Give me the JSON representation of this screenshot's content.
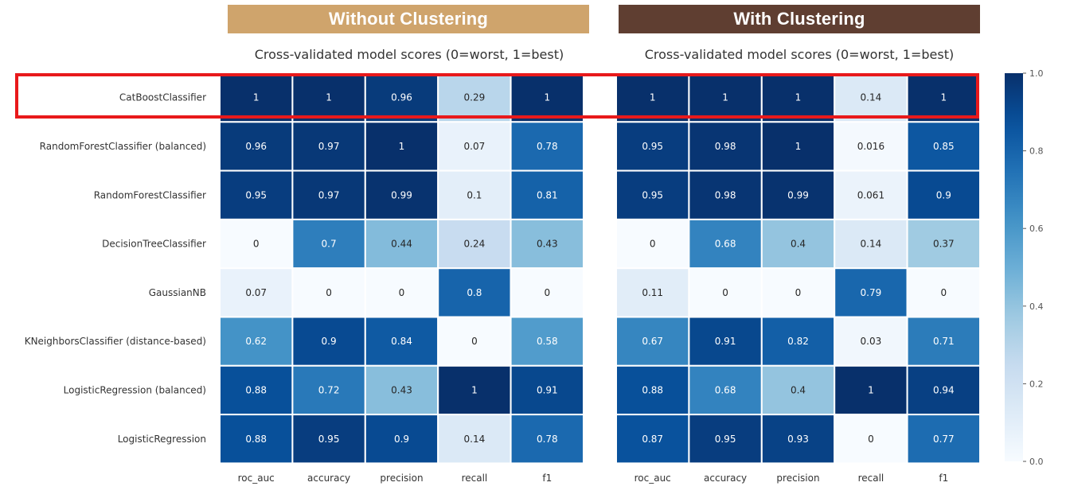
{
  "headers": {
    "left": "Without Clustering",
    "right": "With Clustering",
    "left_color": "#cfa46c",
    "right_color": "#5f3e31"
  },
  "highlight_color": "#e8191b",
  "chart_data": [
    {
      "type": "heatmap",
      "title": "Cross-validated model scores (0=worst, 1=best)",
      "rows": [
        "CatBoostClassifier",
        "RandomForestClassifier (balanced)",
        "RandomForestClassifier",
        "DecisionTreeClassifier",
        "GaussianNB",
        "KNeighborsClassifier (distance-based)",
        "LogisticRegression (balanced)",
        "LogisticRegression"
      ],
      "columns": [
        "roc_auc",
        "accuracy",
        "precision",
        "recall",
        "f1"
      ],
      "values": [
        [
          1,
          1,
          0.96,
          0.29,
          1
        ],
        [
          0.96,
          0.97,
          1,
          0.07,
          0.78
        ],
        [
          0.95,
          0.97,
          0.99,
          0.1,
          0.81
        ],
        [
          0,
          0.7,
          0.44,
          0.24,
          0.43
        ],
        [
          0.07,
          0,
          0,
          0.8,
          0
        ],
        [
          0.62,
          0.9,
          0.84,
          0,
          0.58
        ],
        [
          0.88,
          0.72,
          0.43,
          1,
          0.91
        ],
        [
          0.88,
          0.95,
          0.9,
          0.14,
          0.78
        ]
      ]
    },
    {
      "type": "heatmap",
      "title": "Cross-validated model scores (0=worst, 1=best)",
      "rows": [
        "CatBoostClassifier",
        "RandomForestClassifier (balanced)",
        "RandomForestClassifier",
        "DecisionTreeClassifier",
        "GaussianNB",
        "KNeighborsClassifier (distance-based)",
        "LogisticRegression (balanced)",
        "LogisticRegression"
      ],
      "columns": [
        "roc_auc",
        "accuracy",
        "precision",
        "recall",
        "f1"
      ],
      "values": [
        [
          1,
          1,
          1,
          0.14,
          1
        ],
        [
          0.95,
          0.98,
          1,
          0.016,
          0.85
        ],
        [
          0.95,
          0.98,
          0.99,
          0.061,
          0.9
        ],
        [
          0,
          0.68,
          0.4,
          0.14,
          0.37
        ],
        [
          0.11,
          0,
          0,
          0.79,
          0
        ],
        [
          0.67,
          0.91,
          0.82,
          0.03,
          0.71
        ],
        [
          0.88,
          0.68,
          0.4,
          1,
          0.94
        ],
        [
          0.87,
          0.95,
          0.93,
          0,
          0.77
        ]
      ]
    }
  ],
  "colorbar": {
    "ticks": [
      "0.0",
      "0.2",
      "0.4",
      "0.6",
      "0.8",
      "1.0"
    ],
    "range": [
      0,
      1
    ]
  }
}
